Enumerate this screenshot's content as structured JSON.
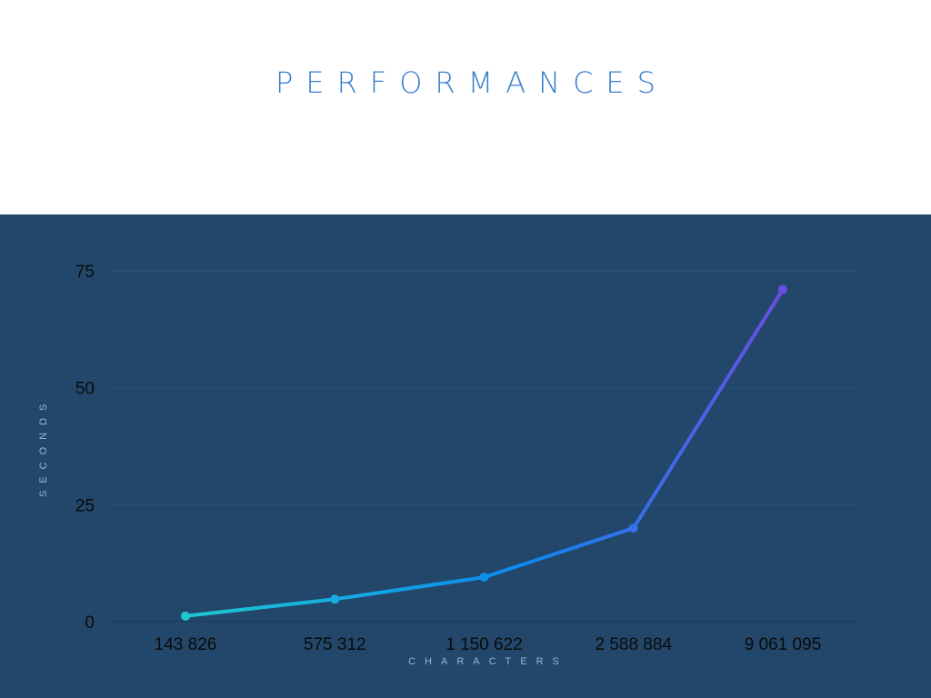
{
  "title": "PERFORMANCES",
  "chart_data": {
    "type": "line",
    "categories": [
      "143 826",
      "575 312",
      "1 150 622",
      "2 588 884",
      "9 061 095"
    ],
    "series": [
      {
        "values": [
          1.2,
          4.8,
          9.5,
          20,
          71
        ]
      }
    ],
    "xlabel": "CHARACTERS",
    "ylabel": "SECONDS",
    "ylim": [
      0,
      75
    ],
    "yticks": [
      0,
      25,
      50,
      75
    ],
    "grid": true,
    "colors": {
      "background": "#22476b",
      "start": "#1ec8d2",
      "mid": "#0b8af0",
      "end": "#6a4ee0",
      "grid": "#2c5478",
      "axis": "#1b3a58"
    }
  }
}
